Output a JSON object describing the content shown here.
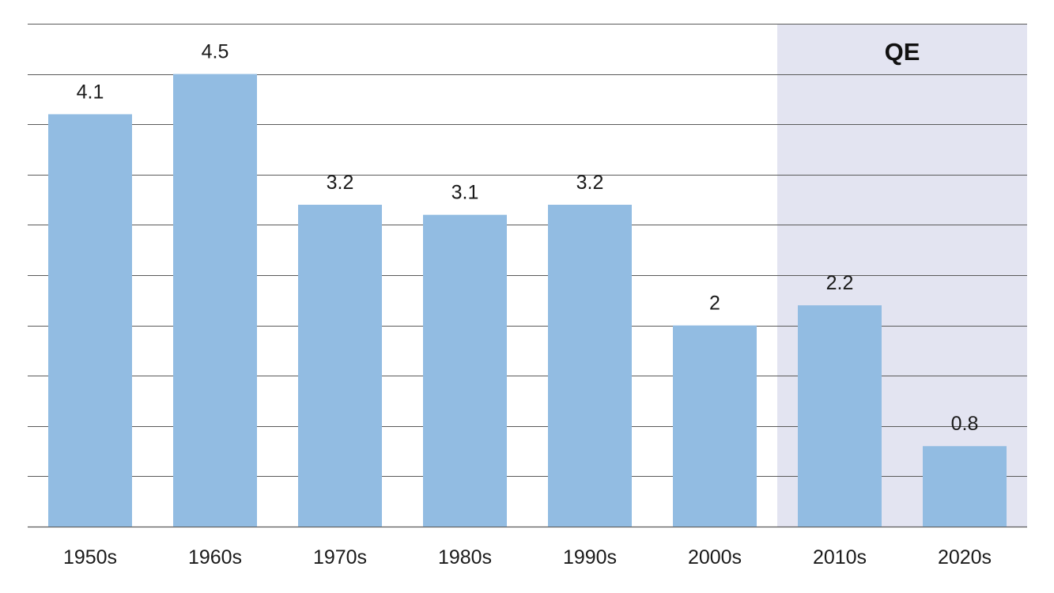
{
  "chart_data": {
    "type": "bar",
    "title": "",
    "xlabel": "",
    "ylabel": "",
    "categories": [
      "1950s",
      "1960s",
      "1970s",
      "1980s",
      "1990s",
      "2000s",
      "2010s",
      "2020s"
    ],
    "values": [
      4.1,
      4.5,
      3.2,
      3.1,
      3.2,
      2,
      2.2,
      0.8
    ],
    "value_labels": [
      "4.1",
      "4.5",
      "3.2",
      "3.1",
      "3.2",
      "2",
      "2.2",
      "0.8"
    ],
    "ylim": [
      0,
      5
    ],
    "ytick_step": 0.5,
    "grid": true,
    "legend": "none",
    "highlight_region": {
      "label": "QE",
      "categories": [
        "2010s",
        "2020s"
      ],
      "color": "#e3e4f1"
    },
    "colors": {
      "bar": "#92bce2",
      "grid": "#5a5a5a"
    }
  }
}
